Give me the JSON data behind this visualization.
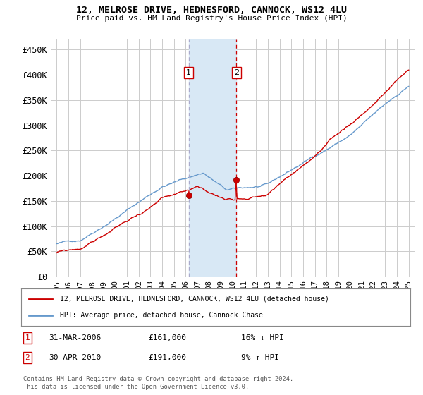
{
  "title": "12, MELROSE DRIVE, HEDNESFORD, CANNOCK, WS12 4LU",
  "subtitle": "Price paid vs. HM Land Registry's House Price Index (HPI)",
  "yticks": [
    0,
    50000,
    100000,
    150000,
    200000,
    250000,
    300000,
    350000,
    400000,
    450000
  ],
  "ytick_labels": [
    "£0",
    "£50K",
    "£100K",
    "£150K",
    "£200K",
    "£250K",
    "£300K",
    "£350K",
    "£400K",
    "£450K"
  ],
  "xlim": [
    1994.5,
    2025.5
  ],
  "ylim": [
    0,
    470000
  ],
  "transaction1": {
    "date": "31-MAR-2006",
    "price": 161000,
    "pct": "16%",
    "direction": "↓"
  },
  "transaction2": {
    "date": "30-APR-2010",
    "price": 191000,
    "pct": "9%",
    "direction": "↑"
  },
  "vline1_x": 2006.25,
  "vline2_x": 2010.33,
  "marker1_x": 2006.25,
  "marker1_y": 161000,
  "marker2_x": 2010.33,
  "marker2_y": 191000,
  "shade_x1": 2006.25,
  "shade_x2": 2010.33,
  "line_color_red": "#cc0000",
  "line_color_blue": "#6699cc",
  "shade_color": "#d8e8f5",
  "vline1_color": "#aaaacc",
  "vline2_color": "#cc0000",
  "legend_label_red": "12, MELROSE DRIVE, HEDNESFORD, CANNOCK, WS12 4LU (detached house)",
  "legend_label_blue": "HPI: Average price, detached house, Cannock Chase",
  "footer": "Contains HM Land Registry data © Crown copyright and database right 2024.\nThis data is licensed under the Open Government Licence v3.0.",
  "background_color": "#ffffff",
  "grid_color": "#cccccc",
  "box_color": "#cc0000"
}
